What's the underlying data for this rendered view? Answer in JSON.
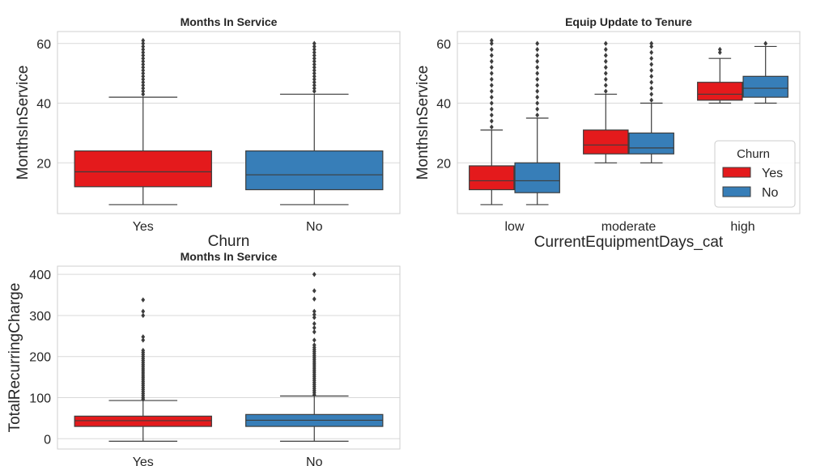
{
  "chart_data": [
    {
      "type": "box",
      "title": "Months In Service",
      "xlabel": "Churn",
      "ylabel": "MonthsInService",
      "ylim": [
        3,
        64
      ],
      "yticks": [
        20,
        40,
        60
      ],
      "categories": [
        "Yes",
        "No"
      ],
      "series": [
        {
          "name": "",
          "color": "#e41a1c",
          "boxes": [
            {
              "cat": "Yes",
              "whislo": 6,
              "q1": 12,
              "med": 17,
              "q3": 24,
              "whishi": 42,
              "fliers": [
                43,
                44,
                45,
                46,
                47,
                48,
                49,
                50,
                51,
                52,
                53,
                54,
                55,
                56,
                57,
                58,
                59,
                60,
                61
              ]
            }
          ]
        },
        {
          "name": "",
          "color": "#377eb8",
          "boxes": [
            {
              "cat": "No",
              "whislo": 6,
              "q1": 11,
              "med": 16,
              "q3": 24,
              "whishi": 43,
              "fliers": [
                44,
                45,
                46,
                47,
                48,
                49,
                50,
                51,
                52,
                53,
                54,
                55,
                56,
                57,
                58,
                59,
                60
              ]
            }
          ]
        }
      ],
      "grid": true,
      "legend": null
    },
    {
      "type": "box",
      "title": "Equip Update to Tenure",
      "xlabel": "CurrentEquipmentDays_cat",
      "ylabel": "MonthsInService",
      "ylim": [
        3,
        64
      ],
      "yticks": [
        20,
        40,
        60
      ],
      "categories": [
        "low",
        "moderate",
        "high"
      ],
      "series": [
        {
          "name": "Yes",
          "color": "#e41a1c",
          "boxes": [
            {
              "cat": "low",
              "whislo": 6,
              "q1": 11,
              "med": 14,
              "q3": 19,
              "whishi": 31,
              "fliers": [
                32,
                34,
                36,
                38,
                40,
                42,
                44,
                46,
                48,
                50,
                52,
                54,
                56,
                58,
                60,
                61
              ]
            },
            {
              "cat": "moderate",
              "whislo": 20,
              "q1": 23,
              "med": 26,
              "q3": 31,
              "whishi": 43,
              "fliers": [
                44,
                46,
                48,
                50,
                52,
                54,
                56,
                58,
                60
              ]
            },
            {
              "cat": "high",
              "whislo": 40,
              "q1": 41,
              "med": 43,
              "q3": 47,
              "whishi": 55,
              "fliers": [
                57,
                58
              ]
            }
          ]
        },
        {
          "name": "No",
          "color": "#377eb8",
          "boxes": [
            {
              "cat": "low",
              "whislo": 6,
              "q1": 10,
              "med": 14,
              "q3": 20,
              "whishi": 35,
              "fliers": [
                36,
                38,
                40,
                42,
                44,
                46,
                48,
                50,
                52,
                54,
                56,
                58,
                60
              ]
            },
            {
              "cat": "moderate",
              "whislo": 20,
              "q1": 23,
              "med": 25,
              "q3": 30,
              "whishi": 40,
              "fliers": [
                41,
                43,
                45,
                47,
                49,
                51,
                53,
                55,
                57,
                59,
                60
              ]
            },
            {
              "cat": "high",
              "whislo": 40,
              "q1": 42,
              "med": 45,
              "q3": 49,
              "whishi": 59,
              "fliers": [
                60
              ]
            }
          ]
        }
      ],
      "grid": true,
      "legend": {
        "title": "Churn",
        "position": "center-right",
        "entries": [
          "Yes",
          "No"
        ]
      }
    },
    {
      "type": "box",
      "title": "Months In Service",
      "xlabel": "",
      "ylabel": "TotalRecurringCharge",
      "ylim": [
        -25,
        420
      ],
      "yticks": [
        0,
        100,
        200,
        300,
        400
      ],
      "categories": [
        "Yes",
        "No"
      ],
      "series": [
        {
          "name": "",
          "color": "#e41a1c",
          "boxes": [
            {
              "cat": "Yes",
              "whislo": -6,
              "q1": 30,
              "med": 44,
              "q3": 55,
              "whishi": 93,
              "fliers": [
                96,
                100,
                105,
                110,
                115,
                120,
                125,
                130,
                135,
                140,
                145,
                150,
                155,
                160,
                165,
                170,
                175,
                180,
                185,
                190,
                195,
                200,
                205,
                210,
                215,
                240,
                248,
                300,
                310,
                338
              ]
            }
          ]
        },
        {
          "name": "",
          "color": "#377eb8",
          "boxes": [
            {
              "cat": "No",
              "whislo": -6,
              "q1": 30,
              "med": 45,
              "q3": 59,
              "whishi": 104,
              "fliers": [
                107,
                112,
                117,
                122,
                127,
                132,
                137,
                142,
                147,
                152,
                157,
                162,
                167,
                172,
                177,
                182,
                187,
                192,
                197,
                202,
                207,
                212,
                217,
                222,
                228,
                240,
                260,
                270,
                280,
                295,
                302,
                310,
                340,
                360,
                400
              ]
            }
          ]
        }
      ],
      "grid": true,
      "legend": null
    }
  ]
}
